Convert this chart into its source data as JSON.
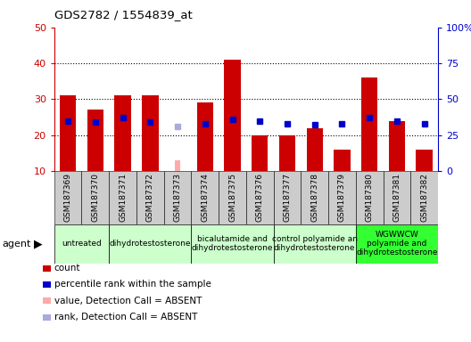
{
  "title": "GDS2782 / 1554839_at",
  "samples": [
    "GSM187369",
    "GSM187370",
    "GSM187371",
    "GSM187372",
    "GSM187373",
    "GSM187374",
    "GSM187375",
    "GSM187376",
    "GSM187377",
    "GSM187378",
    "GSM187379",
    "GSM187380",
    "GSM187381",
    "GSM187382"
  ],
  "count_values": [
    31,
    27,
    31,
    31,
    null,
    29,
    41,
    20,
    20,
    22,
    16,
    36,
    24,
    16
  ],
  "count_absent": [
    null,
    null,
    null,
    null,
    13,
    null,
    null,
    null,
    null,
    null,
    null,
    null,
    null,
    null
  ],
  "rank_values": [
    35,
    34,
    37,
    34,
    null,
    33,
    36,
    35,
    33,
    32,
    33,
    37,
    35,
    33
  ],
  "rank_absent": [
    null,
    null,
    null,
    null,
    31,
    null,
    null,
    null,
    null,
    null,
    null,
    null,
    null,
    null
  ],
  "agent_boundaries": [
    0,
    2,
    5,
    8,
    11,
    14
  ],
  "agent_labels": [
    "untreated",
    "dihydrotestosterone",
    "bicalutamide and\ndihydrotestosterone",
    "control polyamide an\ndihydrotestosterone",
    "WGWWCW\npolyamide and\ndihydrotestosterone"
  ],
  "agent_colors": [
    "#ccffcc",
    "#ccffcc",
    "#ccffcc",
    "#ccffcc",
    "#33ff33"
  ],
  "ylim_left": [
    10,
    50
  ],
  "ylim_right": [
    0,
    100
  ],
  "yticks_left": [
    10,
    20,
    30,
    40,
    50
  ],
  "yticks_right": [
    0,
    25,
    50,
    75,
    100
  ],
  "ytick_labels_right": [
    "0",
    "25",
    "50",
    "75",
    "100%"
  ],
  "bar_color": "#cc0000",
  "bar_absent_color": "#ffaaaa",
  "rank_color": "#0000cc",
  "rank_absent_color": "#aaaadd",
  "plot_bg_color": "#ffffff",
  "xtick_bg_color": "#cccccc",
  "grid_color": "#000000",
  "grid_style": ":"
}
